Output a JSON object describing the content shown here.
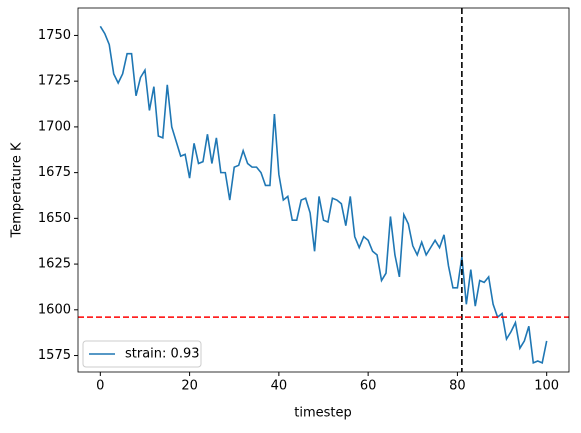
{
  "chart_data": {
    "type": "line",
    "xlabel": "timestep",
    "ylabel": "Temperature K",
    "x": [
      0,
      1,
      2,
      3,
      4,
      5,
      6,
      7,
      8,
      9,
      10,
      11,
      12,
      13,
      14,
      15,
      16,
      17,
      18,
      19,
      20,
      21,
      22,
      23,
      24,
      25,
      26,
      27,
      28,
      29,
      30,
      31,
      32,
      33,
      34,
      35,
      36,
      37,
      38,
      39,
      40,
      41,
      42,
      43,
      44,
      45,
      46,
      47,
      48,
      49,
      50,
      51,
      52,
      53,
      54,
      55,
      56,
      57,
      58,
      59,
      60,
      61,
      62,
      63,
      64,
      65,
      66,
      67,
      68,
      69,
      70,
      71,
      72,
      73,
      74,
      75,
      76,
      77,
      78,
      79,
      80,
      81,
      82,
      83,
      84,
      85,
      86,
      87,
      88,
      89,
      90,
      91,
      92,
      93,
      94,
      95,
      96,
      97,
      98,
      99,
      100
    ],
    "series": [
      {
        "name": "strain: 0.93",
        "color": "#1f77b4",
        "values": [
          1755,
          1751,
          1745,
          1729,
          1724,
          1729,
          1740,
          1740,
          1717,
          1727,
          1731,
          1709,
          1722,
          1695,
          1694,
          1723,
          1700,
          1692,
          1684,
          1685,
          1672,
          1691,
          1680,
          1681,
          1696,
          1680,
          1694,
          1675,
          1675,
          1660,
          1678,
          1679,
          1687,
          1680,
          1678,
          1678,
          1675,
          1668,
          1668,
          1707,
          1674,
          1660,
          1662,
          1649,
          1649,
          1660,
          1661,
          1653,
          1632,
          1662,
          1649,
          1648,
          1661,
          1660,
          1658,
          1646,
          1662,
          1640,
          1634,
          1640,
          1638,
          1632,
          1630,
          1616,
          1620,
          1651,
          1630,
          1618,
          1652,
          1647,
          1635,
          1630,
          1637,
          1630,
          1634,
          1638,
          1634,
          1641,
          1624,
          1612,
          1612,
          1629,
          1603,
          1622,
          1602,
          1616,
          1615,
          1618,
          1603,
          1596,
          1598,
          1584,
          1588,
          1593,
          1579,
          1583,
          1591,
          1571,
          1572,
          1571,
          1583
        ]
      }
    ],
    "reference_lines": [
      {
        "axis": "x",
        "value": 81,
        "color": "#000000"
      },
      {
        "axis": "y",
        "value": 1596,
        "color": "#ff0000"
      }
    ],
    "xlim": [
      -5,
      105
    ],
    "ylim": [
      1566,
      1765
    ],
    "xticks": [
      0,
      20,
      40,
      60,
      80,
      100
    ],
    "yticks": [
      1575,
      1600,
      1625,
      1650,
      1675,
      1700,
      1725,
      1750
    ],
    "legend": "lower left"
  }
}
